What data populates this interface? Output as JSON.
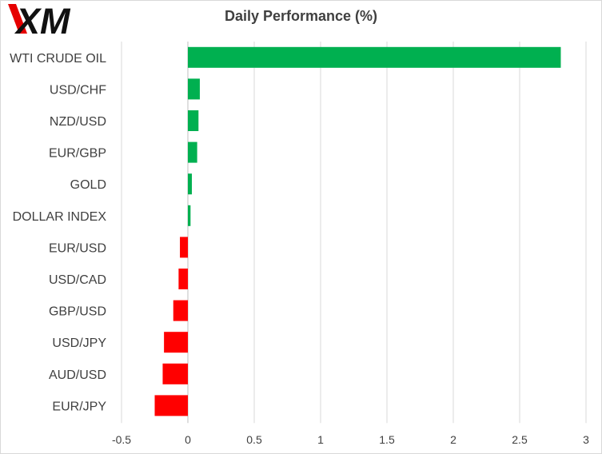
{
  "logo": {
    "text": "XM",
    "colors": {
      "accent": "#e60000",
      "text": "#111111"
    }
  },
  "colors": {
    "positive": "#00b050",
    "negative": "#ff0000",
    "gridline": "#d9d9d9",
    "text": "#404040"
  },
  "chart_data": {
    "type": "bar",
    "orientation": "horizontal",
    "title": "Daily Performance (%)",
    "xlabel": "",
    "ylabel": "",
    "categories": [
      "WTI CRUDE OIL",
      "USD/CHF",
      "NZD/USD",
      "EUR/GBP",
      "GOLD",
      "DOLLAR INDEX",
      "EUR/USD",
      "USD/CAD",
      "GBP/USD",
      "USD/JPY",
      "AUD/USD",
      "EUR/JPY"
    ],
    "values": [
      2.81,
      0.09,
      0.08,
      0.07,
      0.03,
      0.02,
      -0.06,
      -0.07,
      -0.11,
      -0.18,
      -0.19,
      -0.25
    ],
    "xlim": [
      -0.5,
      3
    ],
    "xticks": [
      "-0.5",
      "0",
      "0.5",
      "1",
      "1.5",
      "2",
      "2.5",
      "3"
    ],
    "xtick_values": [
      -0.5,
      0,
      0.5,
      1,
      1.5,
      2,
      2.5,
      3
    ],
    "grid": true,
    "legend": "none"
  }
}
